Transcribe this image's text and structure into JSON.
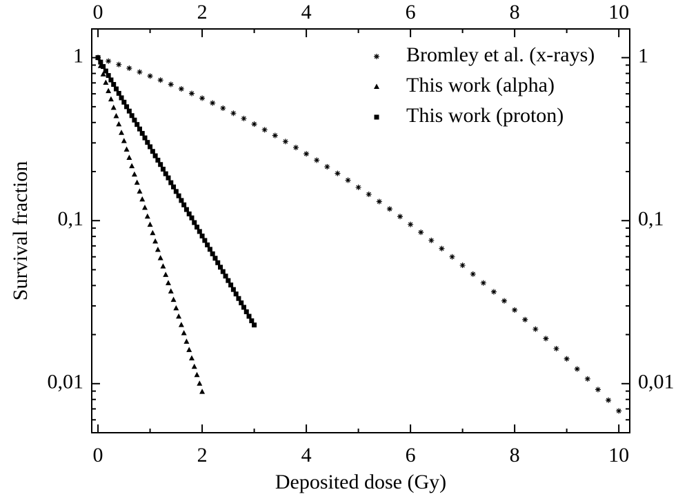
{
  "chart_data": {
    "type": "scatter",
    "x_label": "Deposited dose (Gy)",
    "y_label": "Survival fraction",
    "xlim": [
      -0.12,
      10.21
    ],
    "xticks": [
      0,
      2,
      4,
      6,
      8,
      10
    ],
    "ylim": [
      0.005,
      1.5
    ],
    "y_log": true,
    "yticks": [
      1,
      {
        "value": 0.1,
        "label": "0,1"
      },
      {
        "value": 0.01,
        "label": "0,01"
      }
    ],
    "mirror_axes": true,
    "minor_ticks": true,
    "legend": "upper right",
    "series": [
      {
        "name": "Bromley et al. (x-rays)",
        "marker": "asterisk",
        "color": "#000000",
        "x": [
          0,
          0.2,
          0.4,
          0.6,
          0.8,
          1,
          1.2,
          1.4,
          1.6,
          1.8,
          2,
          2.2,
          2.4,
          2.6,
          2.8,
          3,
          3.2,
          3.4,
          3.6,
          3.8,
          4,
          4.2,
          4.4,
          4.6,
          4.8,
          5,
          5.2,
          5.4,
          5.6,
          5.8,
          6,
          6.2,
          6.4,
          6.6,
          6.8,
          7,
          7.2,
          7.4,
          7.6,
          7.8,
          8,
          8.2,
          8.4,
          8.6,
          8.8,
          9,
          9.2,
          9.4,
          9.6,
          9.8,
          10
        ],
        "values": [
          1,
          0.953,
          0.907,
          0.861,
          0.816,
          0.771,
          0.728,
          0.685,
          0.643,
          0.603,
          0.564,
          0.527,
          0.49,
          0.456,
          0.423,
          0.391,
          0.361,
          0.333,
          0.306,
          0.281,
          0.257,
          0.235,
          0.214,
          0.195,
          0.177,
          0.16,
          0.145,
          0.131,
          0.118,
          0.106,
          0.0948,
          0.0848,
          0.0757,
          0.0674,
          0.06,
          0.0532,
          0.047,
          0.0415,
          0.0366,
          0.0322,
          0.0283,
          0.0247,
          0.0216,
          0.0189,
          0.0164,
          0.0142,
          0.0123,
          0.0107,
          0.0092,
          0.00792,
          0.0068
        ]
      },
      {
        "name": "This work (alpha)",
        "marker": "triangle",
        "color": "#000000",
        "x": [
          0,
          0.05,
          0.1,
          0.15,
          0.2,
          0.25,
          0.3,
          0.35,
          0.4,
          0.45,
          0.5,
          0.55,
          0.6,
          0.65,
          0.7,
          0.75,
          0.8,
          0.85,
          0.9,
          0.95,
          1,
          1.05,
          1.1,
          1.15,
          1.2,
          1.25,
          1.3,
          1.35,
          1.4,
          1.45,
          1.5,
          1.55,
          1.6,
          1.65,
          1.7,
          1.75,
          1.8,
          1.85,
          1.9,
          1.95,
          2
        ],
        "values": [
          1,
          0.889,
          0.79,
          0.702,
          0.624,
          0.555,
          0.493,
          0.438,
          0.39,
          0.346,
          0.308,
          0.273,
          0.243,
          0.216,
          0.192,
          0.171,
          0.151,
          0.135,
          0.12,
          0.106,
          0.0944,
          0.0839,
          0.0746,
          0.0663,
          0.0589,
          0.0524,
          0.0465,
          0.0414,
          0.0368,
          0.0327,
          0.029,
          0.0258,
          0.0229,
          0.0204,
          0.0181,
          0.0161,
          0.0143,
          0.0127,
          0.0113,
          0.01,
          0.00891
        ]
      },
      {
        "name": "This work (proton)",
        "marker": "square",
        "color": "#000000",
        "x": [
          0,
          0.05,
          0.1,
          0.15,
          0.2,
          0.25,
          0.3,
          0.35,
          0.4,
          0.45,
          0.5,
          0.55,
          0.6,
          0.65,
          0.7,
          0.75,
          0.8,
          0.85,
          0.9,
          0.95,
          1,
          1.05,
          1.1,
          1.15,
          1.2,
          1.25,
          1.3,
          1.35,
          1.4,
          1.45,
          1.5,
          1.55,
          1.6,
          1.65,
          1.7,
          1.75,
          1.8,
          1.85,
          1.9,
          1.95,
          2,
          2.05,
          2.1,
          2.15,
          2.2,
          2.25,
          2.3,
          2.35,
          2.4,
          2.45,
          2.5,
          2.55,
          2.6,
          2.65,
          2.7,
          2.75,
          2.8,
          2.85,
          2.9,
          2.95,
          3
        ],
        "values": [
          1,
          0.939,
          0.882,
          0.828,
          0.777,
          0.73,
          0.685,
          0.643,
          0.604,
          0.567,
          0.533,
          0.5,
          0.47,
          0.441,
          0.414,
          0.389,
          0.365,
          0.343,
          0.322,
          0.302,
          0.284,
          0.266,
          0.25,
          0.235,
          0.221,
          0.207,
          0.194,
          0.183,
          0.171,
          0.161,
          0.151,
          0.142,
          0.133,
          0.125,
          0.117,
          0.11,
          0.104,
          0.0973,
          0.0913,
          0.0858,
          0.0805,
          0.0756,
          0.071,
          0.0667,
          0.0626,
          0.0588,
          0.0552,
          0.0518,
          0.0487,
          0.0457,
          0.0429,
          0.0403,
          0.0378,
          0.0355,
          0.0333,
          0.0313,
          0.0294,
          0.0276,
          0.0259,
          0.0243,
          0.0229
        ]
      }
    ]
  }
}
